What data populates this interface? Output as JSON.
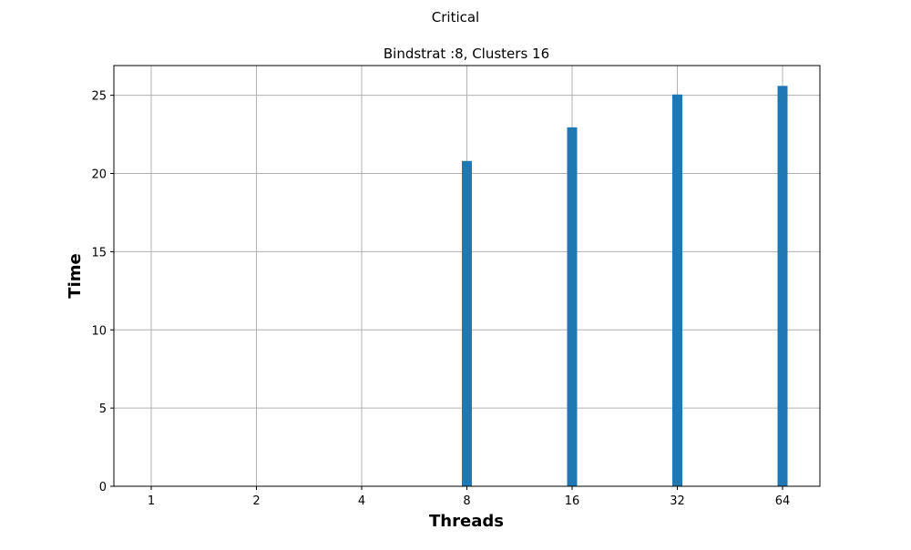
{
  "figure": {
    "suptitle": "Critical"
  },
  "chart_data": {
    "type": "bar",
    "title": "Bindstrat :8, Clusters 16",
    "xlabel": "Threads",
    "ylabel": "Time",
    "categories": [
      "1",
      "2",
      "4",
      "8",
      "16",
      "32",
      "64"
    ],
    "values": [
      0,
      0,
      0,
      20.8,
      22.95,
      25.05,
      25.6
    ],
    "ylim": [
      0,
      26.9
    ],
    "yticks": [
      0,
      5,
      10,
      15,
      20,
      25
    ],
    "grid": true,
    "bar_color": "#1f77b4",
    "legend": null
  }
}
